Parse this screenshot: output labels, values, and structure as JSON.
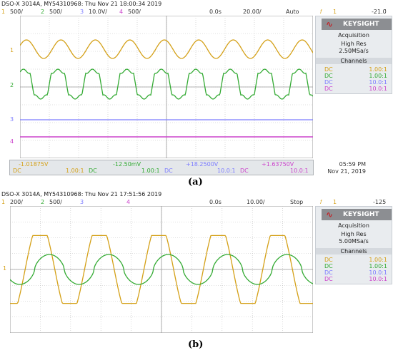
{
  "colors": {
    "ch1": "#d4a017",
    "ch2": "#33aa33",
    "ch3": "#7c7cff",
    "ch4": "#cc44cc",
    "grid": "#bfbfbf"
  },
  "panel_a": {
    "header": "DSO-X 3014A, MY54310968: Thu Nov 21 18:00:34 2019",
    "channels": {
      "ch1_num": "1",
      "ch1_scale": "500̄/",
      "ch2_num": "2",
      "ch2_scale": "500̄/",
      "ch3_num": "3",
      "ch3_scale": "10.0V/",
      "ch4_num": "4",
      "ch4_scale": "500̄/"
    },
    "time_delay": "0.0s",
    "time_scale": "20.00̄/",
    "mode": "Auto",
    "trig_ch": "1",
    "trig_level": "-21.0̄",
    "brand": "KEYSIGHT",
    "acq_title": "Acquisition",
    "acq_mode": "High Res",
    "acq_rate": "2.50MSa/s",
    "channels_title": "Channels",
    "coupling": [
      {
        "c": "DC",
        "p": "1.00:1"
      },
      {
        "c": "DC",
        "p": "1.00:1"
      },
      {
        "c": "DC",
        "p": "10.0:1"
      },
      {
        "c": "DC",
        "p": "10.0:1"
      }
    ],
    "measurements": [
      {
        "value": "-1.01875V",
        "coupling": "DC",
        "probe": "1.00:1"
      },
      {
        "value": "-12.50mV",
        "coupling": "DC",
        "probe": "1.00:1"
      },
      {
        "value": "+18.2500V",
        "coupling": "DC",
        "probe": "10.0:1"
      },
      {
        "value": "+1.63750V",
        "coupling": "DC",
        "probe": "10.0:1"
      }
    ],
    "time_of_day": "05:59 PM",
    "date": "Nov 21, 2019",
    "markers": {
      "ch1": "1",
      "ch2": "2",
      "ch3": "3",
      "ch4": "4"
    },
    "caption": "(a)"
  },
  "panel_b": {
    "header": "DSO-X 3014A, MY54310968: Thu Nov 21 17:51:56 2019",
    "channels": {
      "ch1_num": "1",
      "ch1_scale": "200̄/",
      "ch2_num": "2",
      "ch2_scale": "500̄/",
      "ch3_num": "3",
      "ch4_num": "4"
    },
    "time_delay": "0.0s",
    "time_scale": "10.00̄/",
    "mode": "Stop",
    "trig_ch": "1",
    "trig_level": "-125̄",
    "brand": "KEYSIGHT",
    "acq_title": "Acquisition",
    "acq_mode": "High Res",
    "acq_rate": "5.00MSa/s",
    "channels_title": "Channels",
    "coupling": [
      {
        "c": "DC",
        "p": "1.00:1"
      },
      {
        "c": "DC",
        "p": "1.00:1"
      },
      {
        "c": "DC",
        "p": "10.0:1"
      },
      {
        "c": "DC",
        "p": "10.0:1"
      }
    ],
    "markers": {
      "ch1": "1"
    },
    "caption": "(b)"
  }
}
